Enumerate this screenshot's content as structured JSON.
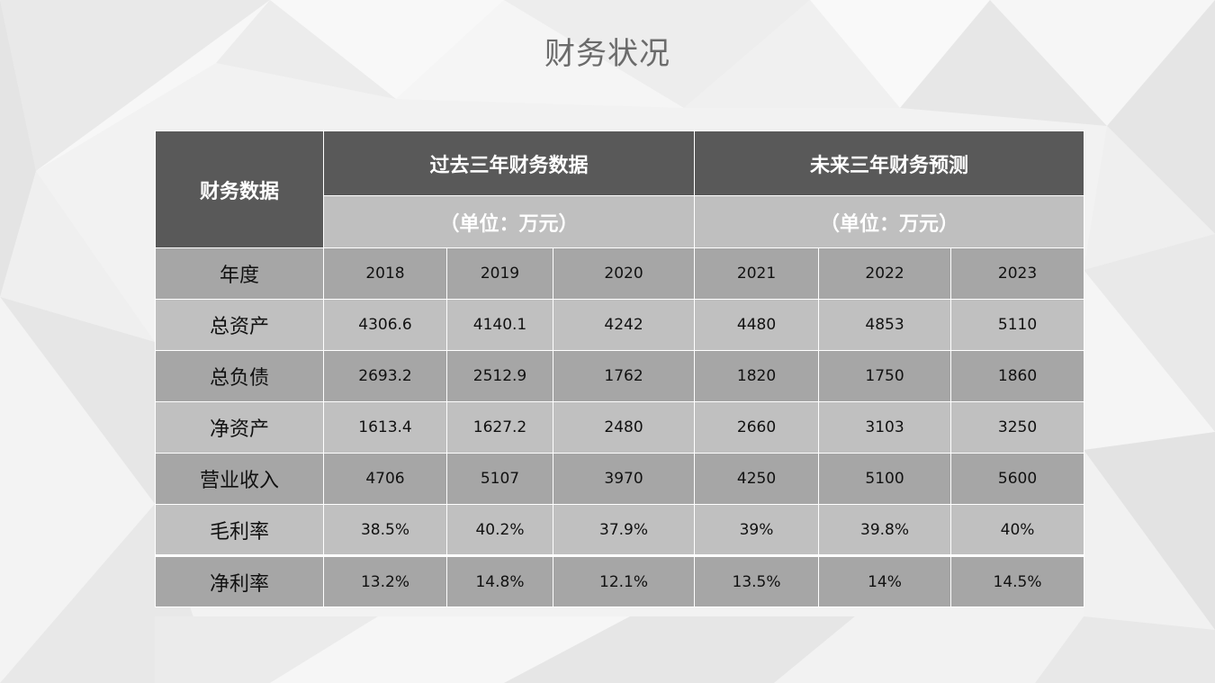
{
  "slide": {
    "title": "财务状况"
  },
  "table": {
    "corner_label": "财务数据",
    "groups": [
      {
        "title": "过去三年财务数据",
        "unit": "（单位：万元）"
      },
      {
        "title": "未来三年财务预测",
        "unit": "（单位：万元）"
      }
    ],
    "year_label": "年度",
    "years": [
      "2018",
      "2019",
      "2020",
      "2021",
      "2022",
      "2023"
    ],
    "rows": [
      {
        "label": "总资产",
        "values": [
          "4306.6",
          "4140.1",
          "4242",
          "4480",
          "4853",
          "5110"
        ]
      },
      {
        "label": "总负债",
        "values": [
          "2693.2",
          "2512.9",
          "1762",
          "1820",
          "1750",
          "1860"
        ]
      },
      {
        "label": "净资产",
        "values": [
          "1613.4",
          "1627.2",
          "2480",
          "2660",
          "3103",
          "3250"
        ]
      },
      {
        "label": "营业收入",
        "values": [
          "4706",
          "5107",
          "3970",
          "4250",
          "5100",
          "5600"
        ]
      },
      {
        "label": "毛利率",
        "values": [
          "38.5%",
          "40.2%",
          "37.9%",
          "39%",
          "39.8%",
          "40%"
        ]
      },
      {
        "label": "净利率",
        "values": [
          "13.2%",
          "14.8%",
          "12.1%",
          "13.5%",
          "14%",
          "14.5%"
        ]
      }
    ]
  },
  "colors": {
    "header_dark": "#595959",
    "header_light": "#bfbfbf",
    "row_dark": "#a6a6a6",
    "row_light": "#c0c0c0",
    "title_text": "#6b6b6b"
  }
}
